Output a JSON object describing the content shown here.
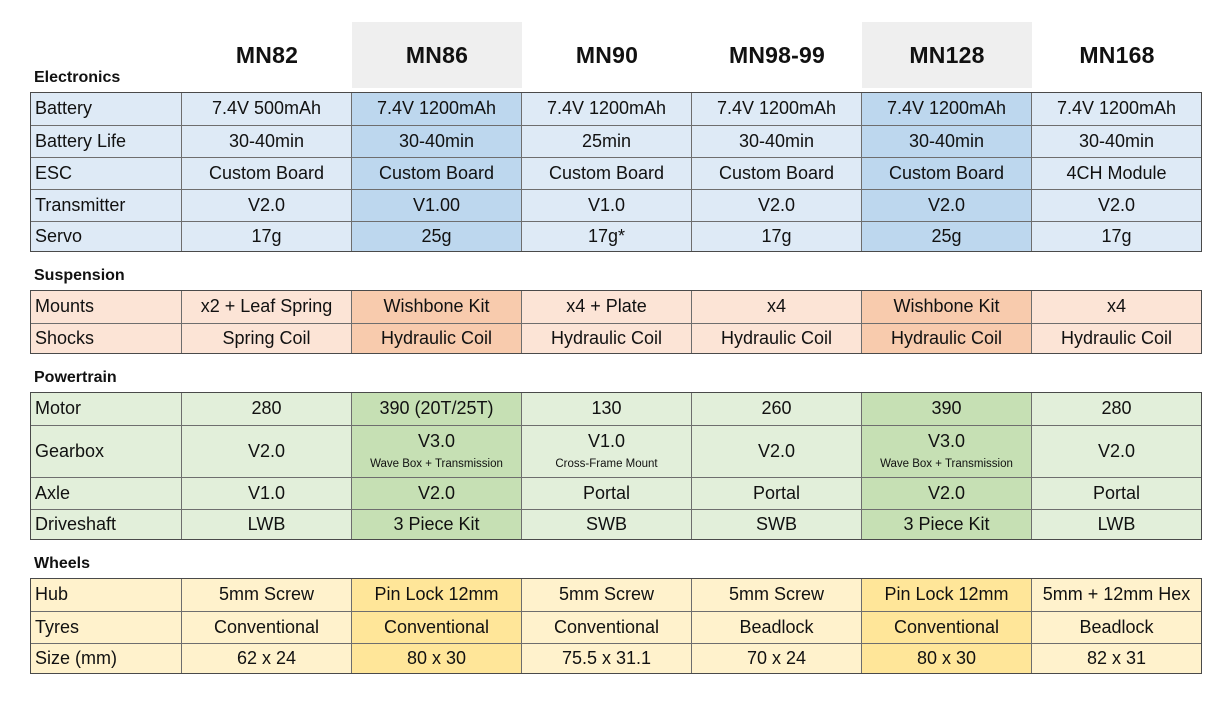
{
  "models": [
    "MN82",
    "MN86",
    "MN90",
    "MN98-99",
    "MN128",
    "MN168"
  ],
  "colors": {
    "electronics_light": "#deeaf6",
    "electronics_dark": "#bdd7ee",
    "suspension_light": "#fce4d6",
    "suspension_dark": "#f8cbad",
    "powertrain_light": "#e2efda",
    "powertrain_dark": "#c6e0b4",
    "wheels_light": "#fff2cc",
    "wheels_dark": "#ffe699",
    "header_highlight": "#efefef"
  },
  "sections": [
    {
      "title": "Electronics",
      "rows": [
        {
          "label": "Battery",
          "values": [
            {
              "main": "7.4V 500mAh"
            },
            {
              "main": "7.4V 1200mAh"
            },
            {
              "main": "7.4V 1200mAh"
            },
            {
              "main": "7.4V 1200mAh"
            },
            {
              "main": "7.4V 1200mAh"
            },
            {
              "main": "7.4V 1200mAh"
            }
          ]
        },
        {
          "label": "Battery Life",
          "values": [
            {
              "main": "30-40min"
            },
            {
              "main": "30-40min"
            },
            {
              "main": "25min"
            },
            {
              "main": "30-40min"
            },
            {
              "main": "30-40min"
            },
            {
              "main": "30-40min"
            }
          ]
        },
        {
          "label": "ESC",
          "values": [
            {
              "main": "Custom Board"
            },
            {
              "main": "Custom Board"
            },
            {
              "main": "Custom Board"
            },
            {
              "main": "Custom Board"
            },
            {
              "main": "Custom Board"
            },
            {
              "main": "4CH Module"
            }
          ]
        },
        {
          "label": "Transmitter",
          "values": [
            {
              "main": "V2.0"
            },
            {
              "main": "V1.00"
            },
            {
              "main": "V1.0"
            },
            {
              "main": "V2.0"
            },
            {
              "main": "V2.0"
            },
            {
              "main": "V2.0"
            }
          ]
        },
        {
          "label": "Servo",
          "values": [
            {
              "main": "17g"
            },
            {
              "main": "25g"
            },
            {
              "main": "17g*"
            },
            {
              "main": "17g"
            },
            {
              "main": "25g"
            },
            {
              "main": "17g"
            }
          ]
        }
      ]
    },
    {
      "title": "Suspension",
      "rows": [
        {
          "label": "Mounts",
          "values": [
            {
              "main": "x2 + Leaf Spring"
            },
            {
              "main": "Wishbone Kit"
            },
            {
              "main": "x4 + Plate"
            },
            {
              "main": "x4"
            },
            {
              "main": "Wishbone Kit"
            },
            {
              "main": "x4"
            }
          ]
        },
        {
          "label": "Shocks",
          "values": [
            {
              "main": "Spring Coil"
            },
            {
              "main": "Hydraulic Coil"
            },
            {
              "main": "Hydraulic Coil"
            },
            {
              "main": "Hydraulic Coil"
            },
            {
              "main": "Hydraulic Coil"
            },
            {
              "main": "Hydraulic Coil"
            }
          ]
        }
      ]
    },
    {
      "title": "Powertrain",
      "rows": [
        {
          "label": "Motor",
          "values": [
            {
              "main": "280"
            },
            {
              "main": "390 (20T/25T)"
            },
            {
              "main": "130"
            },
            {
              "main": "260"
            },
            {
              "main": "390"
            },
            {
              "main": "280"
            }
          ]
        },
        {
          "label": "Gearbox",
          "values": [
            {
              "main": "V2.0"
            },
            {
              "main": "V3.0",
              "sub": "Wave Box + Transmission"
            },
            {
              "main": "V1.0",
              "sub": "Cross-Frame Mount"
            },
            {
              "main": "V2.0"
            },
            {
              "main": "V3.0",
              "sub": "Wave Box + Transmission"
            },
            {
              "main": "V2.0"
            }
          ]
        },
        {
          "label": "Axle",
          "values": [
            {
              "main": "V1.0"
            },
            {
              "main": "V2.0"
            },
            {
              "main": "Portal"
            },
            {
              "main": "Portal"
            },
            {
              "main": "V2.0"
            },
            {
              "main": "Portal"
            }
          ]
        },
        {
          "label": "Driveshaft",
          "values": [
            {
              "main": "LWB"
            },
            {
              "main": "3 Piece Kit"
            },
            {
              "main": "SWB"
            },
            {
              "main": "SWB"
            },
            {
              "main": "3 Piece Kit"
            },
            {
              "main": "LWB"
            }
          ]
        }
      ]
    },
    {
      "title": "Wheels",
      "rows": [
        {
          "label": "Hub",
          "values": [
            {
              "main": "5mm Screw"
            },
            {
              "main": "Pin Lock 12mm"
            },
            {
              "main": "5mm Screw"
            },
            {
              "main": "5mm Screw"
            },
            {
              "main": "Pin Lock 12mm"
            },
            {
              "main": "5mm + 12mm Hex"
            }
          ]
        },
        {
          "label": "Tyres",
          "values": [
            {
              "main": "Conventional"
            },
            {
              "main": "Conventional"
            },
            {
              "main": "Conventional"
            },
            {
              "main": "Beadlock"
            },
            {
              "main": "Conventional"
            },
            {
              "main": "Beadlock"
            }
          ]
        },
        {
          "label": "Size (mm)",
          "values": [
            {
              "main": "62 x 24"
            },
            {
              "main": "80 x 30"
            },
            {
              "main": "75.5 x 31.1"
            },
            {
              "main": "70 x 24"
            },
            {
              "main": "80 x 30"
            },
            {
              "main": "82 x 31"
            }
          ]
        }
      ]
    }
  ]
}
